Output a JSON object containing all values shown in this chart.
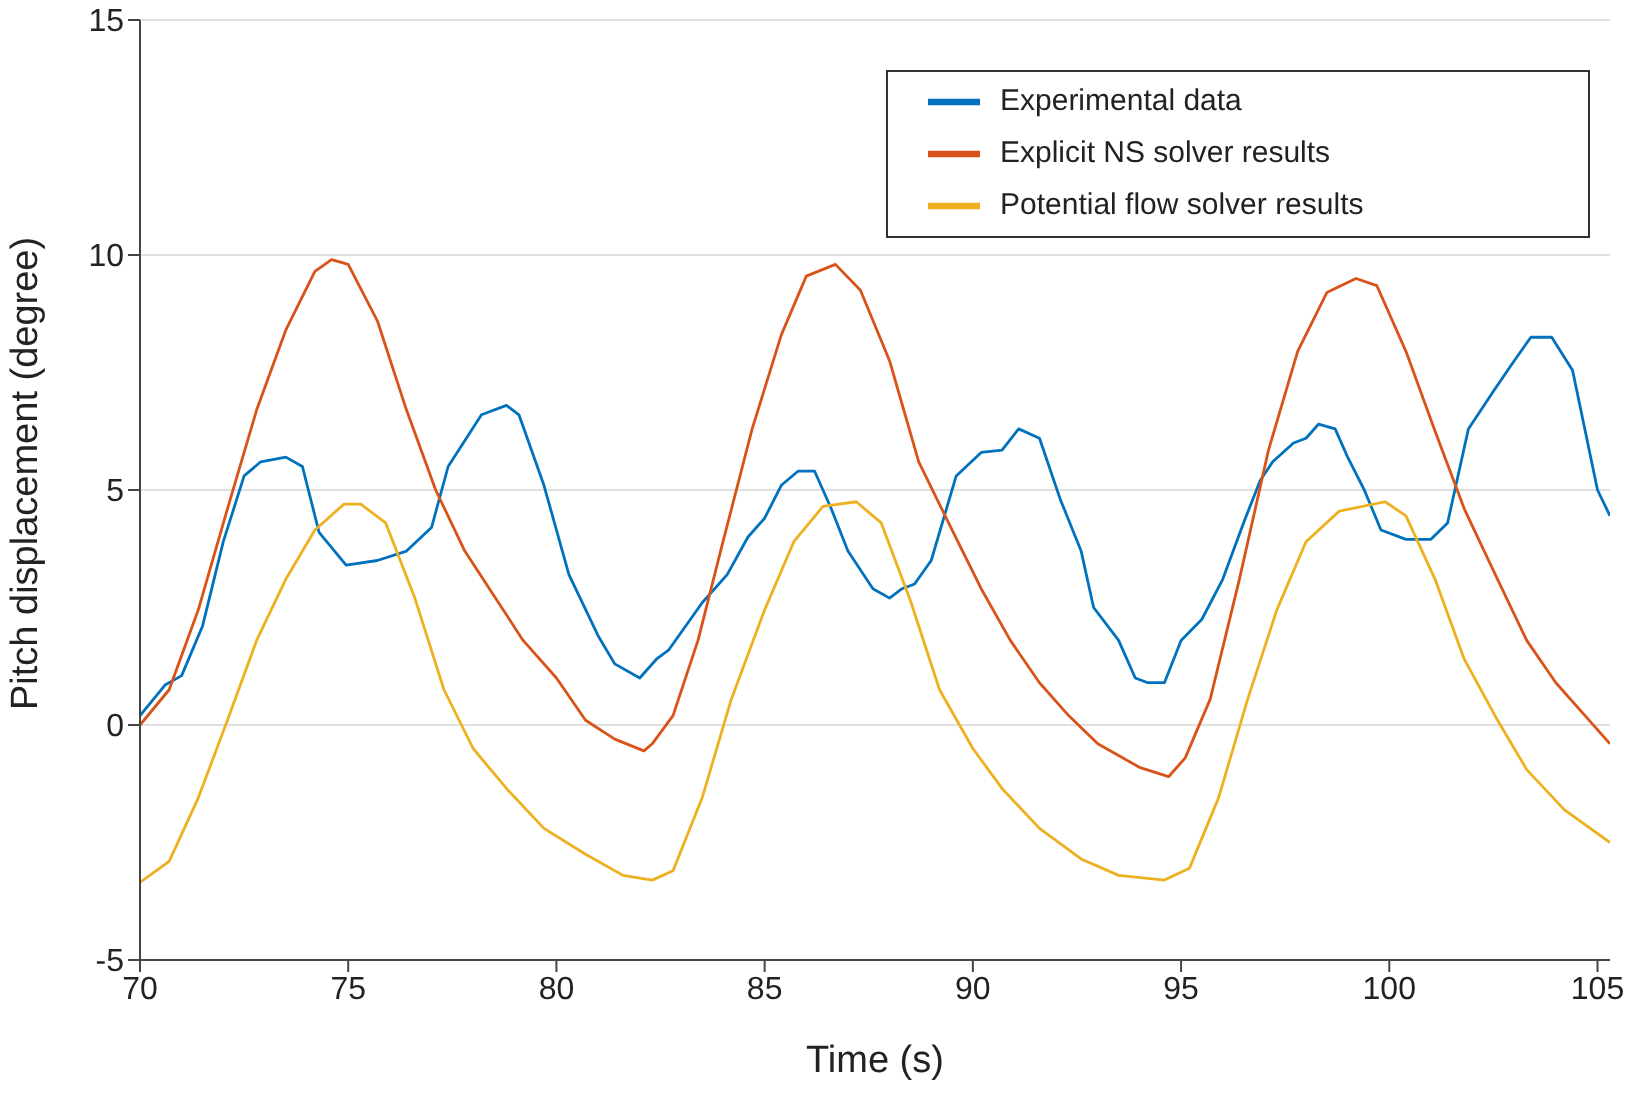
{
  "chart_data": {
    "type": "line",
    "xlabel": "Time (s)",
    "ylabel": "Pitch displacement (degree)",
    "xlim": [
      70,
      105.3
    ],
    "xticks": [
      70,
      75,
      80,
      85,
      90,
      95,
      100,
      105
    ],
    "ylim": [
      -5,
      15
    ],
    "yticks": [
      -5,
      0,
      5,
      10,
      15
    ],
    "grid": "y",
    "legend": "top right",
    "marker": "none",
    "line_style": "solid",
    "series": [
      {
        "name": "Experimental data",
        "color": "#0072bd",
        "x": [
          70,
          70.6,
          71,
          71.5,
          72,
          72.5,
          72.9,
          73.5,
          73.9,
          74.3,
          74.95,
          75.7,
          76.4,
          77,
          77.4,
          78.2,
          78.8,
          79.1,
          79.7,
          80.3,
          81,
          81.4,
          82,
          82.4,
          82.7,
          83.5,
          84.1,
          84.6,
          85,
          85.4,
          85.8,
          86,
          86.2,
          86.6,
          87,
          87.6,
          88,
          88.3,
          88.6,
          89,
          89.6,
          90.2,
          90.7,
          91.1,
          91.6,
          92.1,
          92.6,
          92.9,
          93.5,
          93.9,
          94.2,
          94.6,
          95,
          95.5,
          96,
          96.5,
          96.9,
          97.2,
          97.7,
          98,
          98.3,
          98.7,
          99,
          99.4,
          99.8,
          100.4,
          101,
          101.4,
          101.9,
          102.5,
          103,
          103.4,
          103.9,
          104.4,
          105,
          105.3
        ],
        "values": [
          0.2,
          0.85,
          1.05,
          2.1,
          3.9,
          5.3,
          5.6,
          5.7,
          5.5,
          4.1,
          3.4,
          3.5,
          3.7,
          4.2,
          5.5,
          6.6,
          6.8,
          6.6,
          5.1,
          3.2,
          1.9,
          1.3,
          1.0,
          1.4,
          1.6,
          2.6,
          3.2,
          4.0,
          4.4,
          5.1,
          5.4,
          5.4,
          5.4,
          4.6,
          3.7,
          2.9,
          2.7,
          2.9,
          3.0,
          3.5,
          5.3,
          5.8,
          5.85,
          6.3,
          6.1,
          4.8,
          3.7,
          2.5,
          1.8,
          1.0,
          0.9,
          0.9,
          1.8,
          2.25,
          3.1,
          4.3,
          5.2,
          5.6,
          6.0,
          6.1,
          6.4,
          6.3,
          5.7,
          5.0,
          4.15,
          3.95,
          3.95,
          4.3,
          6.3,
          7.1,
          7.75,
          8.25,
          8.25,
          7.55,
          5.0,
          4.45
        ]
      },
      {
        "name": "Explicit NS solver results",
        "color": "#d95319",
        "x": [
          70,
          70.7,
          71.4,
          72.1,
          72.8,
          73.5,
          74.2,
          74.6,
          75,
          75.7,
          76.4,
          77.1,
          77.8,
          78.5,
          79.2,
          80,
          80.7,
          81.4,
          82.1,
          82.3,
          82.8,
          83.4,
          84,
          84.7,
          85.4,
          86,
          86.7,
          87.3,
          88,
          88.7,
          89.5,
          90.2,
          90.9,
          91.6,
          92.3,
          93,
          94,
          94.7,
          95.1,
          95.7,
          96.4,
          97.1,
          97.8,
          98.5,
          99.2,
          99.7,
          100.4,
          101.1,
          101.8,
          102.6,
          103.3,
          104,
          104.7,
          105.3
        ],
        "values": [
          0,
          0.75,
          2.45,
          4.6,
          6.7,
          8.4,
          9.65,
          9.9,
          9.8,
          8.6,
          6.7,
          5.0,
          3.7,
          2.75,
          1.8,
          1.0,
          0.1,
          -0.3,
          -0.55,
          -0.4,
          0.2,
          1.8,
          3.9,
          6.3,
          8.3,
          9.55,
          9.8,
          9.25,
          7.75,
          5.6,
          4.15,
          2.9,
          1.8,
          0.9,
          0.2,
          -0.4,
          -0.9,
          -1.1,
          -0.7,
          0.55,
          3.1,
          5.85,
          7.95,
          9.2,
          9.5,
          9.35,
          7.95,
          6.25,
          4.6,
          3.1,
          1.8,
          0.9,
          0.2,
          -0.4
        ]
      },
      {
        "name": "Potential flow solver results",
        "color": "#edb120",
        "x": [
          70,
          70.7,
          71.4,
          72.1,
          72.8,
          73.5,
          74.2,
          74.9,
          75.3,
          75.9,
          76.6,
          77.3,
          78,
          78.8,
          79.7,
          80.7,
          81.6,
          82.3,
          82.8,
          83.5,
          84.2,
          85,
          85.7,
          86.4,
          87.2,
          87.8,
          88.5,
          89.2,
          90,
          90.7,
          91.6,
          92.6,
          93.5,
          94.6,
          95.2,
          95.9,
          96.6,
          97.3,
          98,
          98.8,
          99.9,
          100.4,
          101.1,
          101.8,
          102.6,
          103.3,
          104.2,
          105.3
        ],
        "values": [
          -3.35,
          -2.9,
          -1.55,
          0.1,
          1.8,
          3.1,
          4.15,
          4.7,
          4.7,
          4.3,
          2.7,
          0.75,
          -0.5,
          -1.35,
          -2.2,
          -2.75,
          -3.2,
          -3.3,
          -3.1,
          -1.55,
          0.55,
          2.45,
          3.9,
          4.65,
          4.75,
          4.3,
          2.65,
          0.75,
          -0.5,
          -1.35,
          -2.2,
          -2.85,
          -3.2,
          -3.3,
          -3.05,
          -1.55,
          0.55,
          2.45,
          3.9,
          4.55,
          4.75,
          4.45,
          3.1,
          1.4,
          0.1,
          -0.95,
          -1.8,
          -2.5
        ]
      }
    ]
  }
}
